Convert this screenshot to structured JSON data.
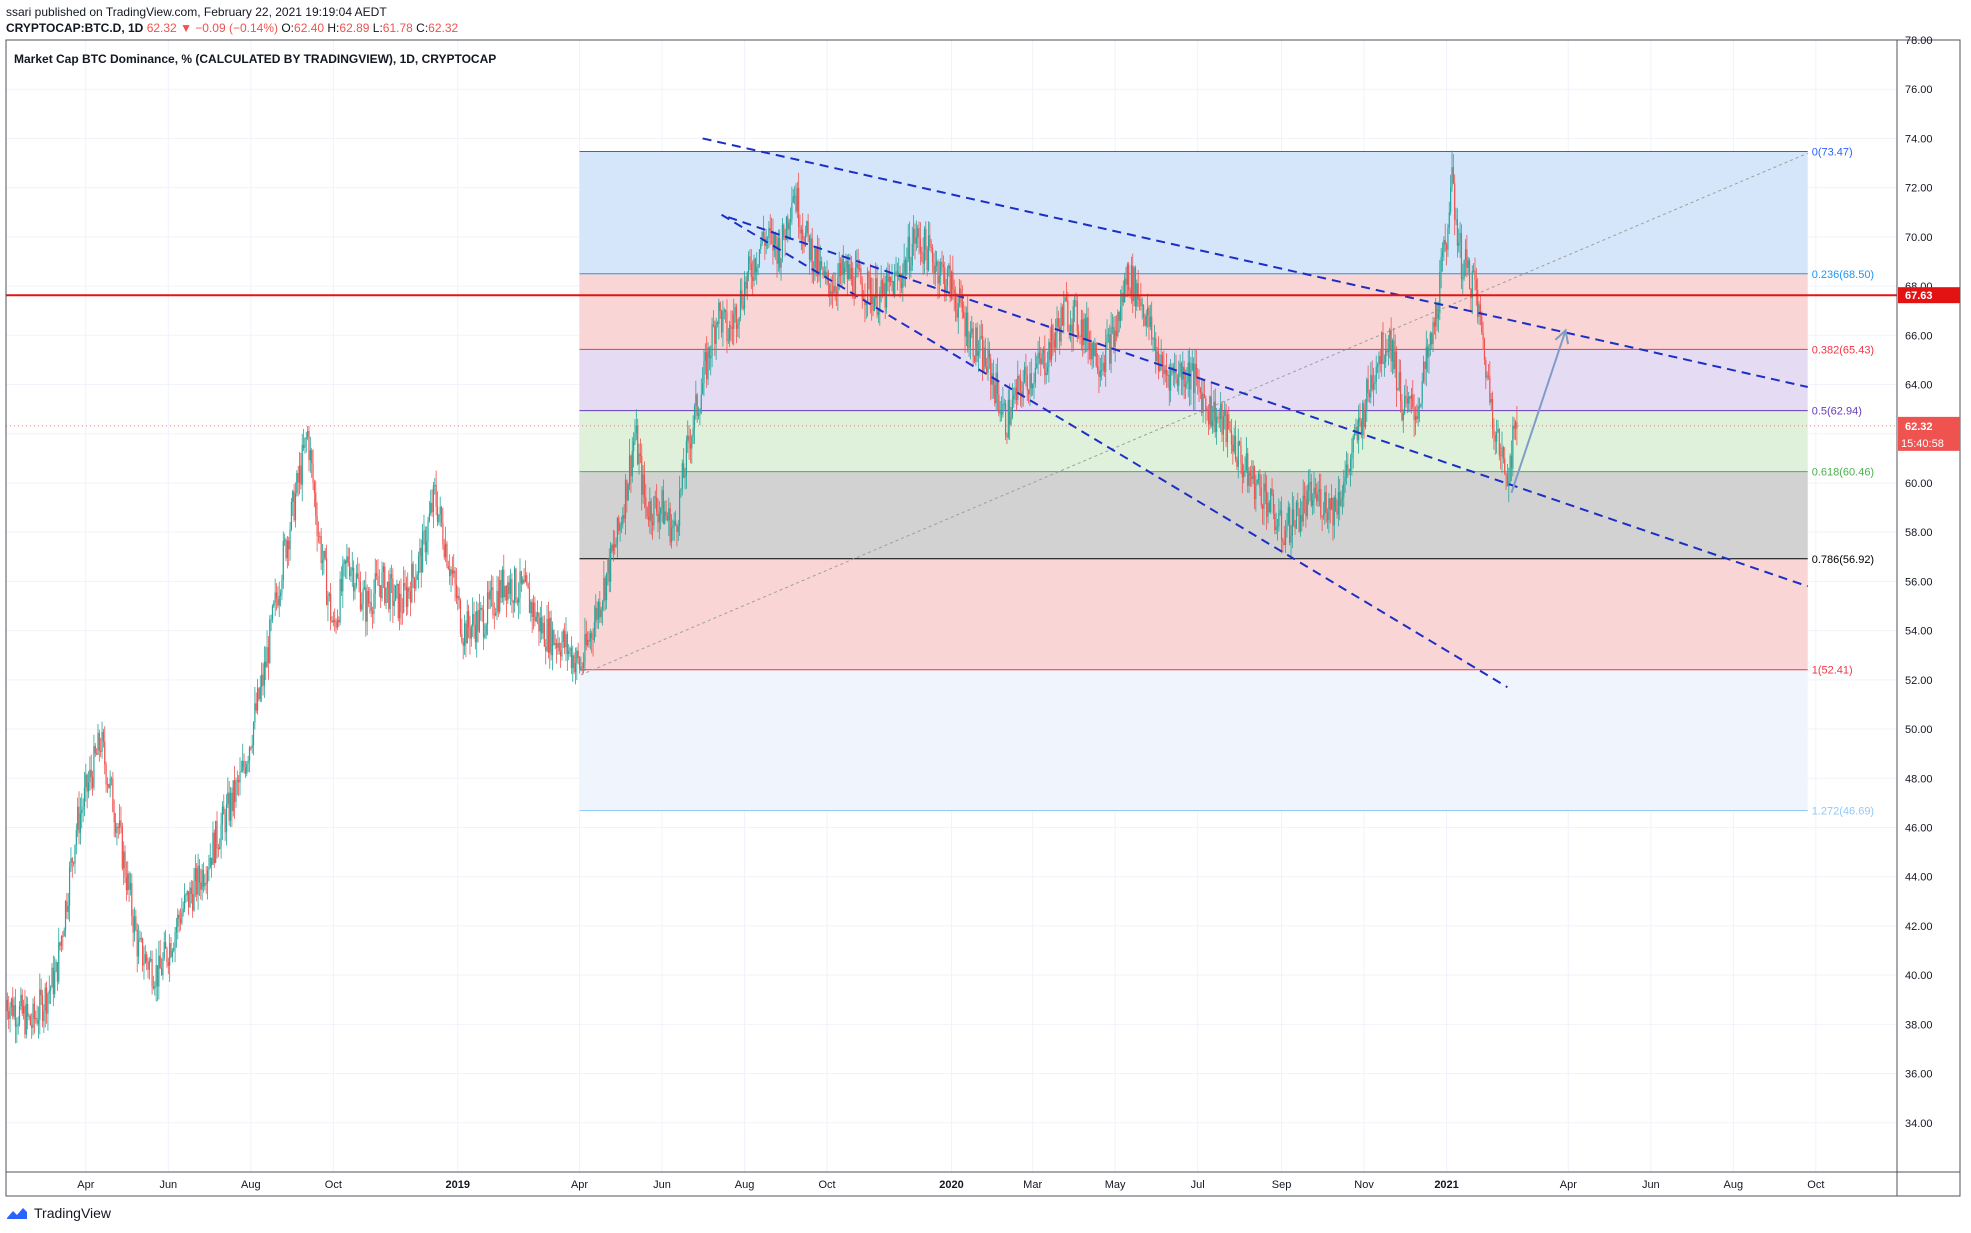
{
  "header": {
    "published": "ssari published on TradingView.com, February 22, 2021 19:19:04 AEDT",
    "symbol": "CRYPTOCAP:BTC.D, 1D",
    "last": "62.32",
    "change": "▼ −0.09 (−0.14%)",
    "o_label": "O:",
    "o": "62.40",
    "h_label": "H:",
    "h": "62.89",
    "l_label": "L:",
    "l": "61.78",
    "c_label": "C:",
    "c": "62.32"
  },
  "chart_title": "Market Cap BTC Dominance, % (CALCULATED BY TRADINGVIEW), 1D, CRYPTOCAP",
  "footer": {
    "brand": "TradingView"
  },
  "colors": {
    "up": "#26a69a",
    "down": "#ef5350",
    "trend": "#1b2fc4",
    "horizontal": "#e31313",
    "arrow": "#7f9cc8"
  },
  "chart_data": {
    "type": "candlestick",
    "ylim": [
      32,
      78
    ],
    "y_ticks": [
      34,
      36,
      38,
      40,
      42,
      44,
      46,
      48,
      50,
      52,
      54,
      56,
      58,
      60,
      62,
      64,
      66,
      68,
      70,
      72,
      74,
      76,
      78
    ],
    "y_tick_labels": [
      "34.00",
      "36.00",
      "38.00",
      "40.00",
      "42.00",
      "44.00",
      "46.00",
      "48.00",
      "50.00",
      "52.00",
      "54.00",
      "56.00",
      "58.00",
      "60.00",
      "62.00",
      "64.00",
      "66.00",
      "68.00",
      "70.00",
      "72.00",
      "74.00",
      "76.00",
      "78.00"
    ],
    "x_range": [
      "2018-02-01",
      "2021-11-30"
    ],
    "x_ticks": [
      {
        "date": "2018-04-01",
        "label": "Apr",
        "bold": false
      },
      {
        "date": "2018-06-01",
        "label": "Jun",
        "bold": false
      },
      {
        "date": "2018-08-01",
        "label": "Aug",
        "bold": false
      },
      {
        "date": "2018-10-01",
        "label": "Oct",
        "bold": false
      },
      {
        "date": "2019-01-01",
        "label": "2019",
        "bold": true
      },
      {
        "date": "2019-04-01",
        "label": "Apr",
        "bold": false
      },
      {
        "date": "2019-06-01",
        "label": "Jun",
        "bold": false
      },
      {
        "date": "2019-08-01",
        "label": "Aug",
        "bold": false
      },
      {
        "date": "2019-10-01",
        "label": "Oct",
        "bold": false
      },
      {
        "date": "2020-01-01",
        "label": "2020",
        "bold": true
      },
      {
        "date": "2020-03-01",
        "label": "Mar",
        "bold": false
      },
      {
        "date": "2020-05-01",
        "label": "May",
        "bold": false
      },
      {
        "date": "2020-07-01",
        "label": "Jul",
        "bold": false
      },
      {
        "date": "2020-09-01",
        "label": "Sep",
        "bold": false
      },
      {
        "date": "2020-11-01",
        "label": "Nov",
        "bold": false
      },
      {
        "date": "2021-01-01",
        "label": "2021",
        "bold": true
      },
      {
        "date": "2021-04-01",
        "label": "Apr",
        "bold": false
      },
      {
        "date": "2021-06-01",
        "label": "Jun",
        "bold": false
      },
      {
        "date": "2021-08-01",
        "label": "Aug",
        "bold": false
      },
      {
        "date": "2021-10-01",
        "label": "Oct",
        "bold": false
      }
    ],
    "price_path": [
      [
        "2018-02-01",
        39
      ],
      [
        "2018-02-20",
        38
      ],
      [
        "2018-03-10",
        40
      ],
      [
        "2018-03-25",
        46
      ],
      [
        "2018-04-12",
        49.5
      ],
      [
        "2018-04-25",
        46
      ],
      [
        "2018-05-10",
        41
      ],
      [
        "2018-05-25",
        40
      ],
      [
        "2018-06-10",
        42.5
      ],
      [
        "2018-06-25",
        44
      ],
      [
        "2018-07-10",
        46
      ],
      [
        "2018-07-25",
        48
      ],
      [
        "2018-08-10",
        52
      ],
      [
        "2018-08-25",
        57
      ],
      [
        "2018-09-05",
        60
      ],
      [
        "2018-09-12",
        62
      ],
      [
        "2018-09-20",
        58
      ],
      [
        "2018-10-01",
        54
      ],
      [
        "2018-10-12",
        57
      ],
      [
        "2018-10-25",
        55
      ],
      [
        "2018-11-05",
        56
      ],
      [
        "2018-11-20",
        55
      ],
      [
        "2018-12-05",
        57
      ],
      [
        "2018-12-15",
        59.5
      ],
      [
        "2018-12-25",
        57
      ],
      [
        "2019-01-05",
        54
      ],
      [
        "2019-01-20",
        54.5
      ],
      [
        "2019-02-05",
        56
      ],
      [
        "2019-02-20",
        55.5
      ],
      [
        "2019-03-05",
        54
      ],
      [
        "2019-03-20",
        53.5
      ],
      [
        "2019-04-02",
        52.5
      ],
      [
        "2019-04-15",
        55
      ],
      [
        "2019-04-30",
        58
      ],
      [
        "2019-05-12",
        62
      ],
      [
        "2019-05-20",
        59
      ],
      [
        "2019-06-01",
        59
      ],
      [
        "2019-06-10",
        58
      ],
      [
        "2019-06-22",
        62
      ],
      [
        "2019-07-01",
        64
      ],
      [
        "2019-07-12",
        67
      ],
      [
        "2019-07-20",
        66
      ],
      [
        "2019-08-01",
        68
      ],
      [
        "2019-08-15",
        70
      ],
      [
        "2019-08-28",
        69.5
      ],
      [
        "2019-09-06",
        72
      ],
      [
        "2019-09-15",
        70
      ],
      [
        "2019-09-30",
        68
      ],
      [
        "2019-10-15",
        68.5
      ],
      [
        "2019-10-28",
        68
      ],
      [
        "2019-11-10",
        67.5
      ],
      [
        "2019-11-25",
        68.5
      ],
      [
        "2019-12-05",
        70
      ],
      [
        "2019-12-20",
        69
      ],
      [
        "2020-01-01",
        68
      ],
      [
        "2020-01-15",
        66
      ],
      [
        "2020-01-30",
        64.5
      ],
      [
        "2020-02-10",
        62.5
      ],
      [
        "2020-02-22",
        64
      ],
      [
        "2020-03-10",
        65
      ],
      [
        "2020-03-25",
        67
      ],
      [
        "2020-04-05",
        66.5
      ],
      [
        "2020-04-20",
        65
      ],
      [
        "2020-05-01",
        66
      ],
      [
        "2020-05-10",
        68.5
      ],
      [
        "2020-05-20",
        67.5
      ],
      [
        "2020-05-28",
        66
      ],
      [
        "2020-06-05",
        64.5
      ],
      [
        "2020-06-25",
        64.5
      ],
      [
        "2020-07-10",
        63
      ],
      [
        "2020-07-25",
        62
      ],
      [
        "2020-08-05",
        60.5
      ],
      [
        "2020-08-20",
        59.5
      ],
      [
        "2020-09-01",
        58
      ],
      [
        "2020-09-10",
        58.5
      ],
      [
        "2020-09-25",
        59.5
      ],
      [
        "2020-10-10",
        59
      ],
      [
        "2020-10-20",
        60.5
      ],
      [
        "2020-11-01",
        63
      ],
      [
        "2020-11-10",
        65
      ],
      [
        "2020-11-20",
        66
      ],
      [
        "2020-11-30",
        63
      ],
      [
        "2020-12-10",
        63
      ],
      [
        "2020-12-22",
        66
      ],
      [
        "2021-01-01",
        70
      ],
      [
        "2021-01-04",
        72.5
      ],
      [
        "2021-01-12",
        69
      ],
      [
        "2021-01-22",
        68
      ],
      [
        "2021-02-01",
        64
      ],
      [
        "2021-02-10",
        61
      ],
      [
        "2021-02-15",
        60.5
      ],
      [
        "2021-02-22",
        62.32
      ]
    ],
    "current_price": {
      "value": 62.32,
      "label": "62.32",
      "countdown": "15:40:58"
    },
    "horizontal_line": {
      "value": 67.63,
      "label": "67.63"
    },
    "fib": {
      "start": "2019-04-01",
      "end": "2021-09-25",
      "levels": [
        {
          "ratio": "0",
          "value": 73.47,
          "label": "0(73.47)",
          "color": "#2962ff",
          "fill": "#d5e6fa"
        },
        {
          "ratio": "0.236",
          "value": 68.5,
          "label": "0.236(68.50)",
          "color": "#2196f3",
          "fill": "#f9d6d5"
        },
        {
          "ratio": "0.382",
          "value": 65.43,
          "label": "0.382(65.43)",
          "color": "#f23645",
          "fill": "#e5dcf3"
        },
        {
          "ratio": "0.5",
          "value": 62.94,
          "label": "0.5(62.94)",
          "color": "#673ab7",
          "fill": "#dff0db"
        },
        {
          "ratio": "0.618",
          "value": 60.46,
          "label": "0.618(60.46)",
          "color": "#4caf50",
          "fill": "#d2d2d2"
        },
        {
          "ratio": "0.786",
          "value": 56.92,
          "label": "0.786(56.92)",
          "color": "#000000",
          "fill": "#f9d6d5"
        },
        {
          "ratio": "1",
          "value": 52.41,
          "label": "1(52.41)",
          "color": "#f23645",
          "fill": "#f0f5fd"
        },
        {
          "ratio": "1.272",
          "value": 46.69,
          "label": "1.272(46.69)",
          "color": "#90caf9",
          "fill": null
        }
      ]
    },
    "diagonal": [
      [
        "2019-04-02",
        52.2
      ],
      [
        "2021-09-25",
        73.4
      ]
    ],
    "trend_lines": [
      [
        [
          "2019-07-01",
          74.0
        ],
        [
          "2021-09-25",
          63.9
        ]
      ],
      [
        [
          "2019-07-20",
          70.8
        ],
        [
          "2021-09-25",
          55.8
        ]
      ],
      [
        [
          "2019-07-15",
          70.9
        ],
        [
          "2021-02-15",
          51.7
        ]
      ]
    ],
    "arrow": [
      [
        "2021-02-18",
        59.6
      ],
      [
        "2021-03-30",
        66.2
      ]
    ]
  }
}
